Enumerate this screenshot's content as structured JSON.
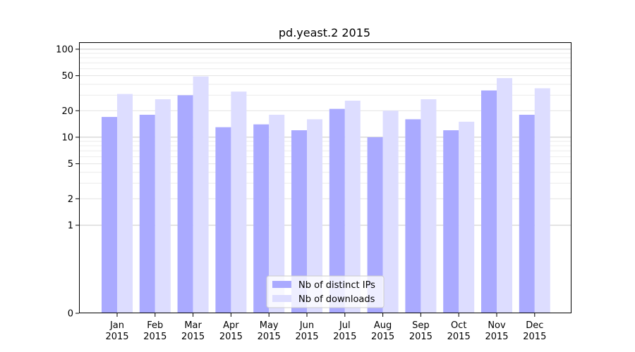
{
  "chart_data": {
    "type": "bar",
    "title": "pd.yeast.2 2015",
    "xlabel": "",
    "ylabel": "",
    "yscale": "symlog",
    "ylim": [
      0,
      120
    ],
    "y_ticks": [
      0,
      1,
      2,
      5,
      10,
      20,
      50,
      100
    ],
    "y_tick_labels": [
      "0",
      "1",
      "2",
      "5",
      "10",
      "20",
      "50",
      "100"
    ],
    "grid": true,
    "legend_position": "bottom-center",
    "categories": [
      [
        "Jan",
        "2015"
      ],
      [
        "Feb",
        "2015"
      ],
      [
        "Mar",
        "2015"
      ],
      [
        "Apr",
        "2015"
      ],
      [
        "May",
        "2015"
      ],
      [
        "Jun",
        "2015"
      ],
      [
        "Jul",
        "2015"
      ],
      [
        "Aug",
        "2015"
      ],
      [
        "Sep",
        "2015"
      ],
      [
        "Oct",
        "2015"
      ],
      [
        "Nov",
        "2015"
      ],
      [
        "Dec",
        "2015"
      ]
    ],
    "series": [
      {
        "name": "Nb of distinct IPs",
        "color": "#aaaaff",
        "values": [
          17,
          18,
          30,
          13,
          14,
          12,
          21,
          10,
          16,
          12,
          34,
          18
        ]
      },
      {
        "name": "Nb of downloads",
        "color": "#ddddff",
        "values": [
          31,
          27,
          49,
          33,
          18,
          16,
          26,
          20,
          27,
          15,
          47,
          36
        ]
      }
    ]
  }
}
